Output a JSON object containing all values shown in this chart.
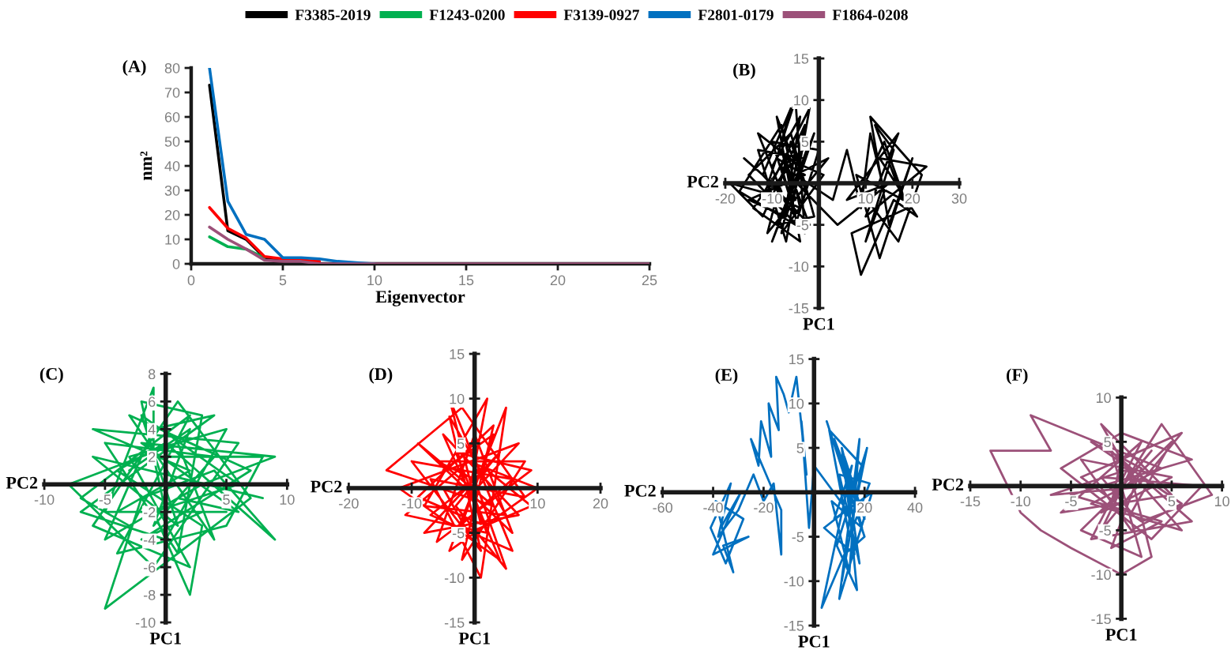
{
  "chart_data": [
    {
      "type": "line",
      "title": "(A)",
      "xlabel": "Eigenvector",
      "ylabel": "nm²",
      "legend": "top",
      "xlim": [
        0,
        25
      ],
      "ylim": [
        0,
        80
      ],
      "xticks": [
        0,
        5,
        10,
        15,
        20,
        25
      ],
      "yticks": [
        0,
        10,
        20,
        30,
        40,
        50,
        60,
        70,
        80
      ],
      "x": [
        1,
        2,
        3,
        4,
        5,
        6,
        7,
        8,
        9,
        10,
        11,
        12,
        13,
        14,
        15,
        16,
        17,
        18,
        19,
        20,
        21,
        22,
        23,
        24,
        25
      ],
      "series": [
        {
          "name": "F3385-2019",
          "color": "#000000",
          "values": [
            73,
            13.5,
            10,
            2.5,
            1,
            null,
            null,
            null,
            null,
            null,
            null,
            null,
            null,
            null,
            null,
            null,
            null,
            null,
            null,
            null,
            null,
            null,
            null,
            null,
            null
          ]
        },
        {
          "name": "F1243-0200",
          "color": "#00b050",
          "values": [
            11,
            7,
            6,
            2.5,
            null,
            null,
            null,
            null,
            null,
            null,
            null,
            null,
            null,
            null,
            null,
            null,
            null,
            null,
            null,
            null,
            null,
            null,
            null,
            null,
            null
          ]
        },
        {
          "name": "F3139-0927",
          "color": "#ff0000",
          "values": [
            23,
            14.5,
            10.5,
            3,
            2,
            1.5,
            1,
            null,
            null,
            null,
            null,
            null,
            null,
            null,
            null,
            null,
            null,
            null,
            null,
            null,
            null,
            null,
            null,
            null,
            null
          ]
        },
        {
          "name": "F2801-0179",
          "color": "#0070c0",
          "values": [
            80,
            25.5,
            12,
            10,
            2.5,
            2.5,
            2,
            1,
            0.5,
            0,
            null,
            null,
            null,
            null,
            null,
            null,
            null,
            null,
            null,
            null,
            null,
            null,
            null,
            null,
            null
          ]
        },
        {
          "name": "F1864-0208",
          "color": "#9c5179",
          "values": [
            15,
            10,
            6,
            1.5,
            1,
            1,
            0,
            0,
            0,
            0,
            0,
            0,
            0,
            0,
            0,
            0,
            0,
            0,
            0,
            0,
            0,
            0,
            0,
            0,
            0
          ]
        }
      ]
    },
    {
      "type": "line",
      "title": "(B)",
      "xlabel": "PC1",
      "ylabel": "PC2",
      "xlim": [
        -20,
        30
      ],
      "ylim": [
        -15,
        15
      ],
      "xticks": [
        -20,
        -10,
        10,
        20,
        30
      ],
      "yticks": [
        -15,
        -10,
        -5,
        5,
        10,
        15
      ],
      "series": [
        {
          "color": "#000000",
          "x": [
            -10,
            -4,
            -7,
            -2,
            -12,
            -5,
            -3,
            -15,
            -6,
            -1,
            -9,
            -3,
            -13,
            -7,
            -2,
            -11,
            -4,
            -8,
            -17,
            -5,
            0,
            -10,
            -6,
            -19,
            -12,
            -3,
            -8,
            1,
            -7,
            -14,
            -4,
            -9,
            -2,
            -6,
            -11,
            2,
            -5,
            3,
            6,
            9,
            11,
            14,
            10,
            16,
            12,
            18,
            8,
            13,
            20,
            15,
            11,
            22,
            17,
            9,
            14,
            19,
            7,
            9,
            16,
            21,
            13,
            23,
            10,
            17,
            6,
            15,
            4,
            -3,
            -8,
            -5,
            -10,
            -16,
            -8,
            -13,
            -4,
            -10,
            -1,
            -7,
            -15,
            -3,
            -9,
            -6,
            -12,
            -2,
            -8,
            -5
          ],
          "values": [
            2,
            8,
            -3,
            5,
            -2,
            10,
            -6,
            1,
            6,
            -4,
            -5,
            3,
            4,
            -7,
            9,
            -1,
            -3,
            7,
            -1,
            -5,
            4,
            5,
            -2,
            0,
            -4,
            7,
            -6,
            1,
            3,
            -3,
            -7,
            8,
            -2,
            5,
            -6,
            3,
            1,
            -2,
            4,
            -3,
            6,
            -1,
            -7,
            4,
            7,
            -2,
            1,
            -9,
            3,
            -5,
            8,
            1,
            -7,
            -1,
            5,
            -3,
            -6,
            -11,
            -2,
            -4,
            3,
            2,
            -4,
            6,
            -2,
            0,
            -5,
            -1,
            2,
            -4,
            0,
            3,
            -1,
            6,
            2,
            -7,
            6,
            -4,
            -2,
            1,
            3,
            9,
            1,
            -5,
            4,
            -2
          ]
        }
      ]
    },
    {
      "type": "line",
      "title": "(C)",
      "xlabel": "PC1",
      "ylabel": "PC2",
      "xlim": [
        -10,
        10
      ],
      "ylim": [
        -10,
        8
      ],
      "xticks": [
        -10,
        -5,
        5,
        10
      ],
      "yticks": [
        -10,
        -8,
        -6,
        -4,
        -2,
        2,
        4,
        6,
        8
      ],
      "series": [
        {
          "color": "#00b050",
          "x": [
            -3,
            2,
            -1,
            4,
            -5,
            1,
            3,
            -2,
            0,
            5,
            -4,
            2,
            -6,
            6,
            -1,
            -8,
            1,
            4,
            -3,
            7,
            -2,
            3,
            -5,
            -1,
            -1,
            8,
            5,
            -4,
            2,
            -7,
            -3,
            1,
            6,
            -2,
            9,
            3,
            -5,
            -1,
            4,
            -7,
            0,
            5,
            -3,
            2,
            -6,
            1,
            7,
            -5,
            -2,
            4,
            9,
            0,
            -4,
            3,
            2,
            -1,
            6,
            -2,
            1,
            -6,
            8
          ],
          "values": [
            1,
            4,
            -3,
            2,
            3,
            -5,
            5,
            6,
            -2,
            -2,
            -2,
            1,
            4,
            3,
            -6,
            0,
            3,
            -4,
            5,
            1,
            -4,
            -2,
            -2,
            7,
            2,
            2,
            -3,
            -5,
            5,
            -1,
            -3,
            -1,
            -2,
            3,
            2,
            0,
            -4,
            4,
            5,
            -2,
            -4,
            4,
            2,
            -6,
            -3,
            6,
            -1,
            -9,
            -1,
            1,
            -4,
            3,
            1,
            -3,
            -8,
            -2,
            0,
            5,
            -3,
            2,
            -1
          ]
        }
      ]
    },
    {
      "type": "line",
      "title": "(D)",
      "xlabel": "PC1",
      "ylabel": "PC2",
      "xlim": [
        -20,
        20
      ],
      "ylim": [
        -15,
        15
      ],
      "xticks": [
        -20,
        -10,
        10,
        20
      ],
      "yticks": [
        -15,
        -10,
        -5,
        5,
        10,
        15
      ],
      "series": [
        {
          "color": "#ff0000",
          "x": [
            -5,
            3,
            -2,
            6,
            -10,
            1,
            -4,
            5,
            -8,
            2,
            -1,
            7,
            -12,
            4,
            -3,
            9,
            -6,
            0,
            6,
            -9,
            3,
            -14,
            -2,
            8,
            -7,
            1,
            5,
            -4,
            10,
            -1,
            -11,
            2,
            -5,
            7,
            -8,
            4,
            -3,
            5,
            0,
            -6,
            8,
            -2,
            3,
            -9,
            1,
            -4,
            6,
            -7,
            2,
            9,
            -1,
            -5
          ],
          "values": [
            2,
            6,
            -4,
            1,
            3,
            -7,
            8,
            -3,
            -2,
            10,
            -1,
            5,
            0,
            -8,
            4,
            2,
            -6,
            6,
            -5,
            5,
            -2,
            2,
            9,
            -1,
            1,
            -10,
            9,
            -7,
            0,
            3,
            -3,
            -5,
            6,
            -3,
            -5,
            4,
            -2,
            -9,
            1,
            3,
            3,
            -8,
            7,
            -1,
            -4,
            10,
            -7,
            -3,
            2,
            -2,
            -5,
            0
          ]
        }
      ]
    },
    {
      "type": "line",
      "title": "(E)",
      "xlabel": "PC1",
      "ylabel": "PC2",
      "xlim": [
        -60,
        40
      ],
      "ylim": [
        -15,
        15
      ],
      "xticks": [
        -60,
        -40,
        -20,
        20,
        40
      ],
      "yticks": [
        -15,
        -10,
        -5,
        5,
        10,
        15
      ],
      "series": [
        {
          "color": "#0070c0",
          "x": [
            15,
            8,
            20,
            12,
            18,
            10,
            22,
            14,
            6,
            19,
            11,
            16,
            21,
            9,
            17,
            13,
            5,
            20,
            12,
            3,
            15,
            8,
            23,
            10,
            18,
            14,
            7,
            19,
            11,
            16,
            4,
            13,
            0,
            -2,
            -5,
            -3,
            -7,
            -10,
            -12,
            -15,
            -14,
            -18,
            -17,
            -21,
            -22,
            -25,
            -13,
            -13,
            -16,
            -20,
            -24,
            -30,
            -38,
            -33,
            -41,
            -35,
            -28,
            -39,
            -32,
            -36,
            -26,
            -40,
            -34,
            -29,
            -37
          ],
          "values": [
            0,
            6,
            -3,
            4,
            -8,
            2,
            1,
            -5,
            7,
            3,
            -10,
            -2,
            5,
            -6,
            -11,
            1,
            8,
            -5,
            -7,
            -13,
            3,
            -3,
            0,
            -12,
            6,
            -9,
            -1,
            -4,
            5,
            -7,
            -4,
            -2,
            3,
            -4,
            8,
            2,
            13,
            9,
            11,
            13,
            7,
            10,
            4,
            8,
            3,
            6,
            -2,
            -7,
            1,
            -1,
            2,
            -2,
            -5,
            1,
            -4,
            -8,
            -3,
            -1,
            -9,
            -6,
            -5,
            -7,
            -3,
            0,
            -4
          ]
        }
      ]
    },
    {
      "type": "line",
      "title": "(F)",
      "xlabel": "PC1",
      "ylabel": "PC2",
      "xlim": [
        -15,
        10
      ],
      "ylim": [
        -15,
        10
      ],
      "xticks": [
        -15,
        -10,
        -5,
        5,
        10
      ],
      "yticks": [
        -15,
        -10,
        -5,
        5,
        10
      ],
      "series": [
        {
          "color": "#9c5179",
          "x": [
            0,
            3,
            -2,
            5,
            -4,
            1,
            6,
            -3,
            2,
            -1,
            4,
            -5,
            7,
            0,
            -6,
            3,
            8,
            -2,
            1,
            5,
            -4,
            2,
            -1,
            6,
            -3,
            4,
            -9,
            -7,
            -13,
            -10,
            -8,
            -5,
            0,
            3,
            1,
            -2,
            5,
            -6,
            2,
            -3,
            7,
            0,
            -1,
            4,
            9,
            2,
            -4,
            6,
            -2,
            1,
            -7,
            3
          ],
          "values": [
            0,
            4,
            -3,
            1,
            3,
            -5,
            -2,
            5,
            2,
            -7,
            -4,
            -1,
            3,
            6,
            2,
            -6,
            0,
            1,
            -3,
            5,
            -5,
            -8,
            4,
            -5,
            -2,
            2,
            8,
            4,
            4,
            -3,
            -5,
            -7,
            -10,
            -8,
            1,
            7,
            -1,
            -3,
            5,
            -6,
            -4,
            3,
            -2,
            7,
            -1,
            -4,
            1,
            6,
            -5,
            2,
            -1,
            0
          ]
        }
      ]
    }
  ]
}
